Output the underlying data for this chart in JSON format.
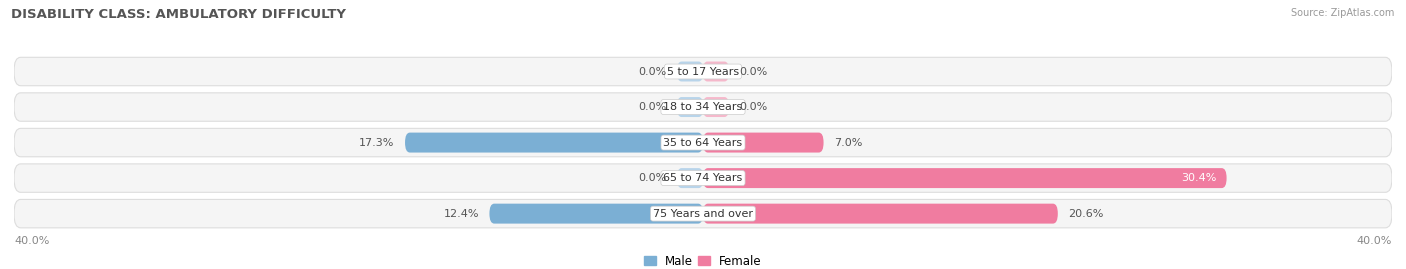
{
  "title": "DISABILITY CLASS: AMBULATORY DIFFICULTY",
  "source": "Source: ZipAtlas.com",
  "categories": [
    "5 to 17 Years",
    "18 to 34 Years",
    "35 to 64 Years",
    "65 to 74 Years",
    "75 Years and over"
  ],
  "male_values": [
    0.0,
    0.0,
    17.3,
    0.0,
    12.4
  ],
  "female_values": [
    0.0,
    0.0,
    7.0,
    30.4,
    20.6
  ],
  "x_max": 40.0,
  "male_color": "#7bafd4",
  "female_color": "#f07ca0",
  "male_color_light": "#b8d4ea",
  "female_color_light": "#f5b8cb",
  "row_bg_color": "#efefef",
  "row_bg_inner": "#f8f8f8",
  "axis_label_left": "40.0%",
  "axis_label_right": "40.0%",
  "legend_male": "Male",
  "legend_female": "Female",
  "title_fontsize": 9.5,
  "label_fontsize": 8,
  "category_fontsize": 8,
  "axis_tick_fontsize": 8
}
